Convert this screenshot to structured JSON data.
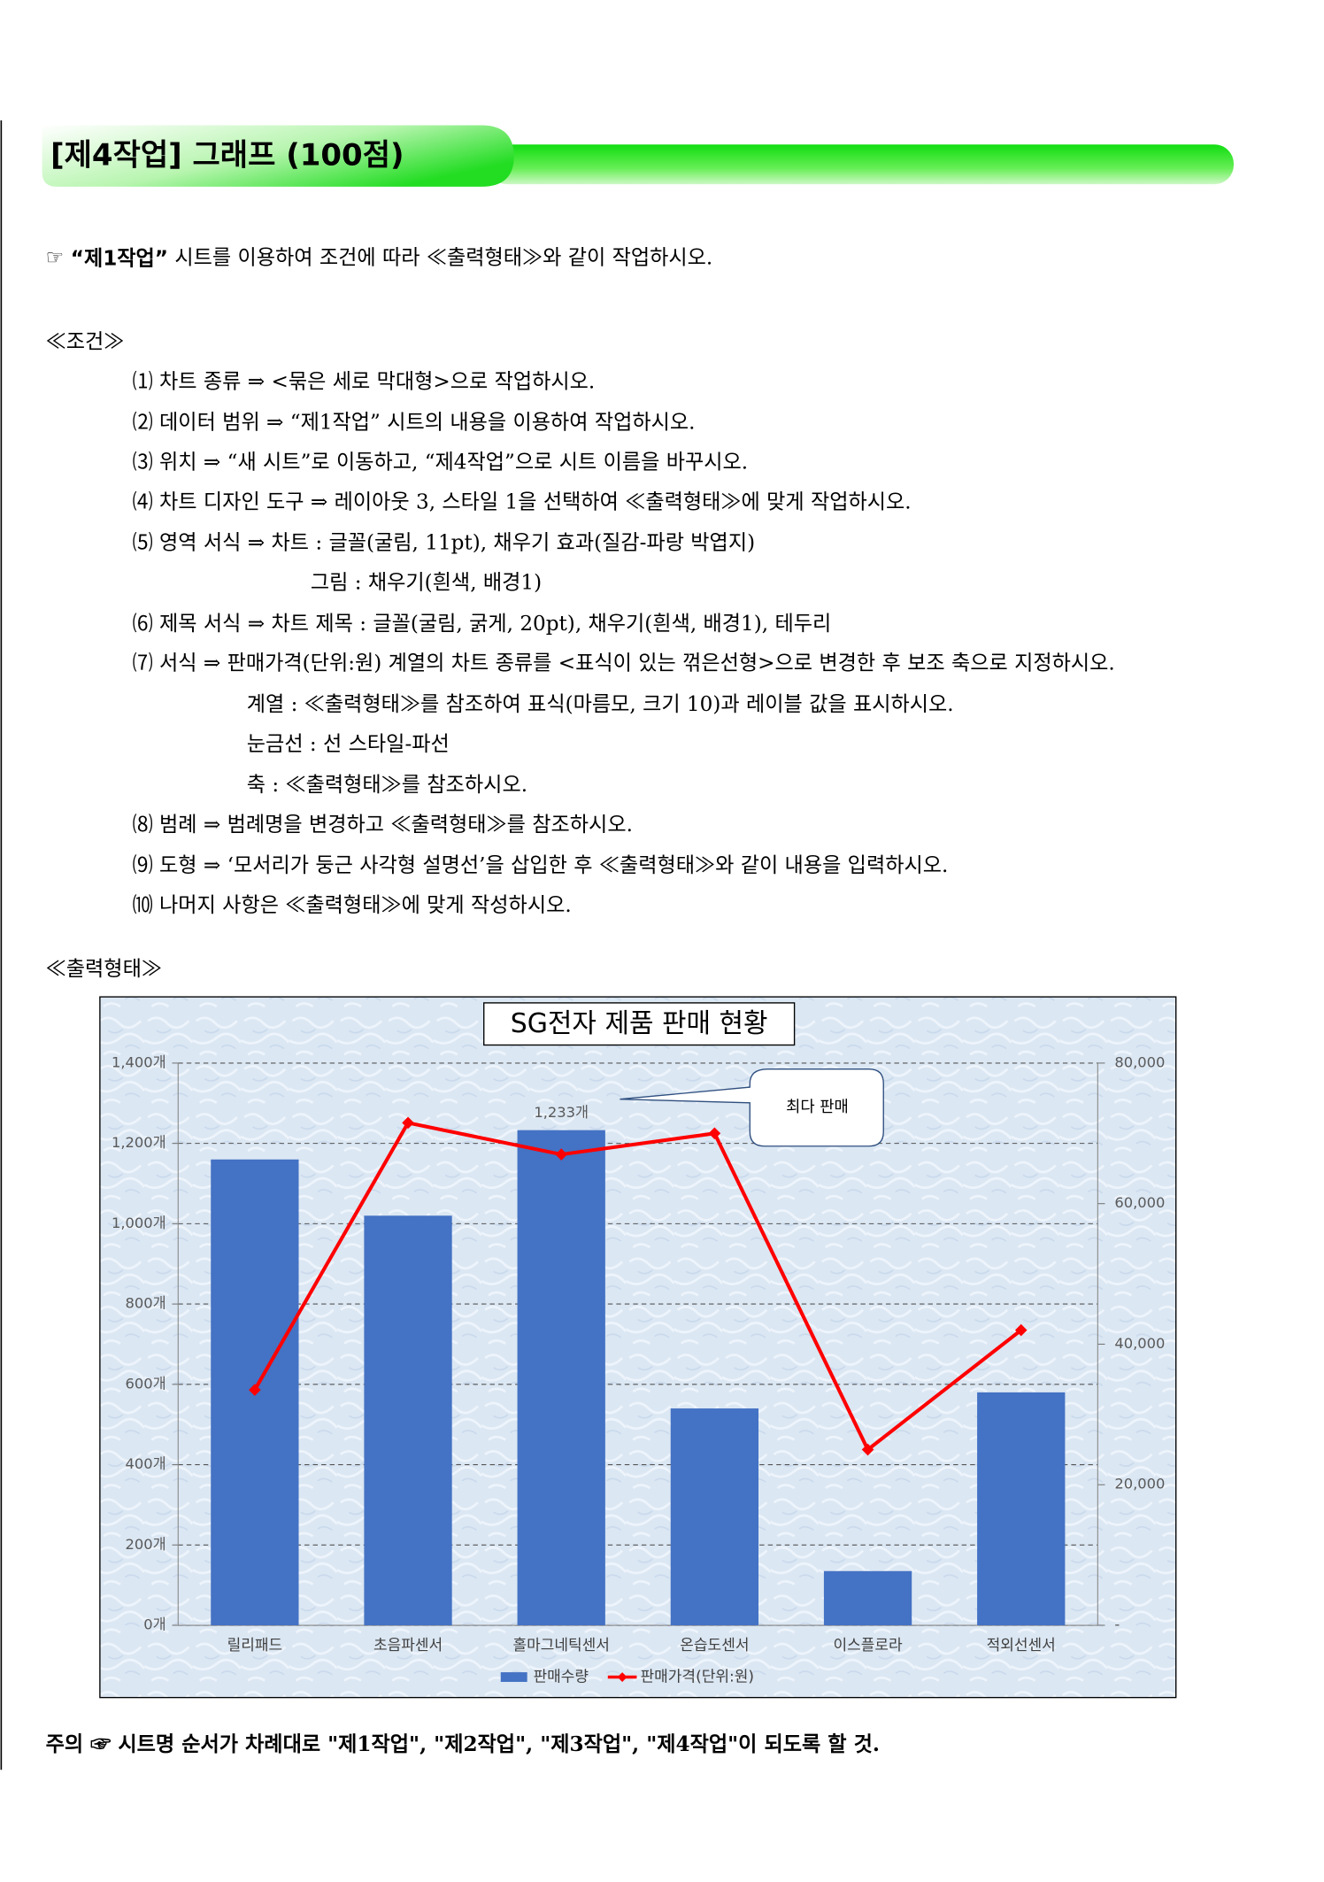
{
  "header": {
    "title": "[제4작업] 그래프 (100점)"
  },
  "instruction": {
    "prefix": "☞",
    "emphasis": "“제1작업”",
    "text": "시트를 이용하여 조건에 따라 ≪출력형태≫와 같이 작업하시오."
  },
  "conditions": {
    "heading": "≪조건≫",
    "lines": [
      "⑴ 차트 종류 ⇒ <묶은 세로 막대형>으로 작업하시오.",
      "⑵ 데이터 범위 ⇒ “제1작업” 시트의 내용을 이용하여 작업하시오.",
      "⑶ 위치 ⇒ “새 시트”로 이동하고, “제4작업”으로 시트 이름을 바꾸시오.",
      "⑷ 차트 디자인 도구 ⇒ 레이아웃 3, 스타일 1을 선택하여 ≪출력형태≫에 맞게 작업하시오.",
      "⑸ 영역 서식 ⇒ 차트 : 글꼴(굴림, 11pt), 채우기 효과(질감-파랑 박엽지)",
      "그림 : 채우기(흰색, 배경1)",
      "⑹ 제목 서식 ⇒ 차트 제목 : 글꼴(굴림, 굵게, 20pt), 채우기(흰색, 배경1), 테두리",
      "⑺ 서식 ⇒ 판매가격(단위:원) 계열의 차트 종류를 <표식이 있는 꺾은선형>으로 변경한 후 보조 축으로 지정하시오.",
      "계열 : ≪출력형태≫를 참조하여 표식(마름모, 크기 10)과 레이블 값을 표시하시오.",
      "눈금선 : 선 스타일-파선",
      "축 : ≪출력형태≫를 참조하시오.",
      "⑻ 범례 ⇒ 범례명을 변경하고 ≪출력형태≫를 참조하시오.",
      "⑼ 도형 ⇒ ‘모서리가 둥근 사각형 설명선’을 삽입한 후 ≪출력형태≫와 같이 내용을 입력하시오.",
      "⑽ 나머지 사항은 ≪출력형태≫에 맞게 작성하시오."
    ]
  },
  "output_heading": "≪출력형태≫",
  "chart_data": {
    "type": "bar",
    "title": "SG전자 제품 판매 현황",
    "categories": [
      "릴리패드",
      "초음파센서",
      "홀마그네틱센서",
      "온습도센서",
      "이스플로라",
      "적외선센서"
    ],
    "series": [
      {
        "name": "판매수량",
        "color": "#4472c4",
        "values": [
          1160,
          1020,
          1233,
          540,
          135,
          580
        ],
        "value_labels": [
          null,
          null,
          "1,233개",
          null,
          null,
          null
        ]
      },
      {
        "name": "판매가격(단위:원)",
        "type": "line",
        "marker": "diamond",
        "axis": "y2",
        "color": "#ff0000",
        "values": [
          33500,
          71500,
          67000,
          70000,
          25000,
          42000
        ]
      }
    ],
    "ylim": [
      0,
      1400
    ],
    "yticks": [
      {
        "value": 0,
        "label": "0개"
      },
      {
        "value": 200,
        "label": "200개"
      },
      {
        "value": 400,
        "label": "400개"
      },
      {
        "value": 600,
        "label": "600개"
      },
      {
        "value": 800,
        "label": "800개"
      },
      {
        "value": 1000,
        "label": "1,000개"
      },
      {
        "value": 1200,
        "label": "1,200개"
      },
      {
        "value": 1400,
        "label": "1,400개"
      }
    ],
    "y2lim": [
      0,
      80000
    ],
    "y2ticks": [
      {
        "value": 0,
        "label": "-"
      },
      {
        "value": 20000,
        "label": "20,000"
      },
      {
        "value": 40000,
        "label": "40,000"
      },
      {
        "value": 60000,
        "label": "60,000"
      },
      {
        "value": 80000,
        "label": "80,000"
      }
    ],
    "grid": true,
    "grid_style": "dashed",
    "legend": "bottom",
    "annotations": [
      {
        "text": "최다 판매"
      }
    ]
  },
  "note": "주의 ☞ 시트명 순서가 차례대로 \"제1작업\", \"제2작업\", \"제3작업\", \"제4작업\"이 되도록 할 것."
}
